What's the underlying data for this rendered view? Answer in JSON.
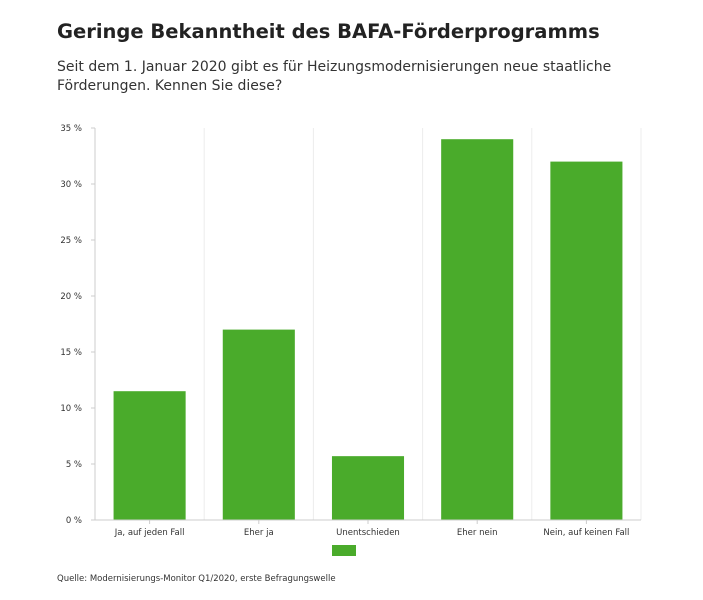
{
  "header": {
    "title": "Geringe Bekanntheit des BAFA-Förderprogramms",
    "subtitle": "Seit dem 1. Januar 2020 gibt es für Heizungsmodernisierungen neue staatliche Förderungen. Kennen Sie diese?"
  },
  "footer": {
    "source": "Quelle: Modernisierungs-Monitor Q1/2020, erste Befragungswelle"
  },
  "chart_data": {
    "type": "bar",
    "title": "Geringe Bekanntheit des BAFA-Förderprogramms",
    "subtitle": "Seit dem 1. Januar 2020 gibt es für Heizungsmodernisierungen neue staatliche Förderungen. Kennen Sie diese?",
    "categories": [
      "Ja, auf jeden Fall",
      "Eher ja",
      "Unentschieden",
      "Eher nein",
      "Nein, auf keinen Fall"
    ],
    "series": [
      {
        "values": [
          11.5,
          17,
          5.7,
          34,
          32
        ],
        "color": "#4aab2b"
      }
    ],
    "ylim": [
      0,
      35
    ],
    "yticks": [
      0,
      5,
      10,
      15,
      20,
      25,
      30,
      35
    ],
    "ytick_labels": [
      "0 %",
      "5 %",
      "10 %",
      "15 %",
      "20 %",
      "25 %",
      "30 %",
      "35 %"
    ],
    "xlabel": "",
    "ylabel": "",
    "grid": true,
    "legend": "bottom-center"
  }
}
